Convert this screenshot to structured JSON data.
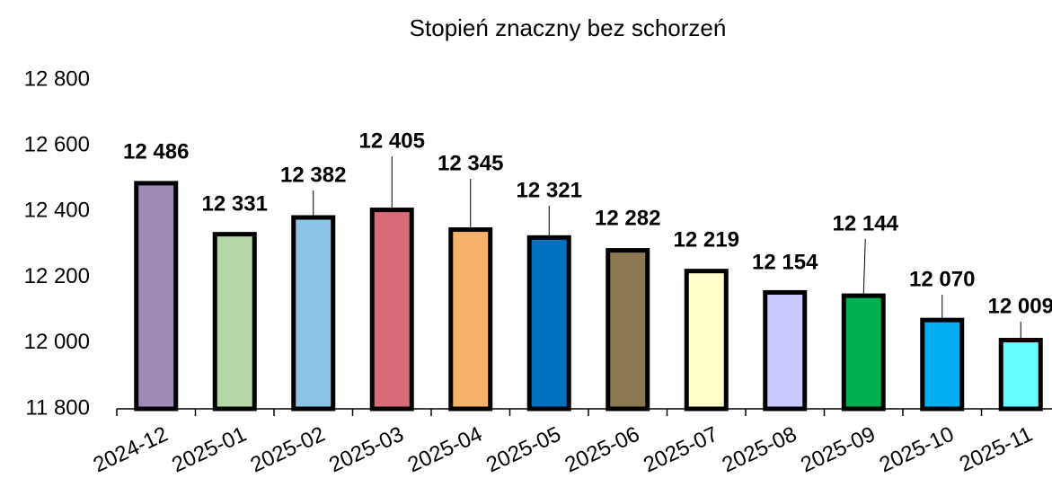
{
  "chart_data": {
    "type": "bar",
    "title": "Stopień znaczny bez schorzeń",
    "categories": [
      "2024-12",
      "2025-01",
      "2025-02",
      "2025-03",
      "2025-04",
      "2025-05",
      "2025-06",
      "2025-07",
      "2025-08",
      "2025-09",
      "2025-10",
      "2025-11"
    ],
    "values": [
      12486,
      12331,
      12382,
      12405,
      12345,
      12321,
      12282,
      12219,
      12154,
      12144,
      12070,
      12009
    ],
    "value_labels": [
      "12 486",
      "12 331",
      "12 382",
      "12 405",
      "12 345",
      "12 321",
      "12 282",
      "12 219",
      "12 154",
      "12 144",
      "12 070",
      "12 009"
    ],
    "colors": [
      "#a08ab8",
      "#b6d7a8",
      "#8cc4e6",
      "#d96a77",
      "#f6b26b",
      "#0070c0",
      "#8b7750",
      "#ffffcc",
      "#c9c9ff",
      "#00b050",
      "#00b0f0",
      "#66ffff"
    ],
    "ylim": [
      11800,
      12800
    ],
    "yticks": [
      {
        "value": 11800,
        "label": "11 800"
      },
      {
        "value": 12000,
        "label": "12 000"
      },
      {
        "value": 12200,
        "label": "12 200"
      },
      {
        "value": 12400,
        "label": "12 400"
      },
      {
        "value": 12600,
        "label": "12 600"
      },
      {
        "value": 12800,
        "label": "12 800"
      }
    ]
  }
}
